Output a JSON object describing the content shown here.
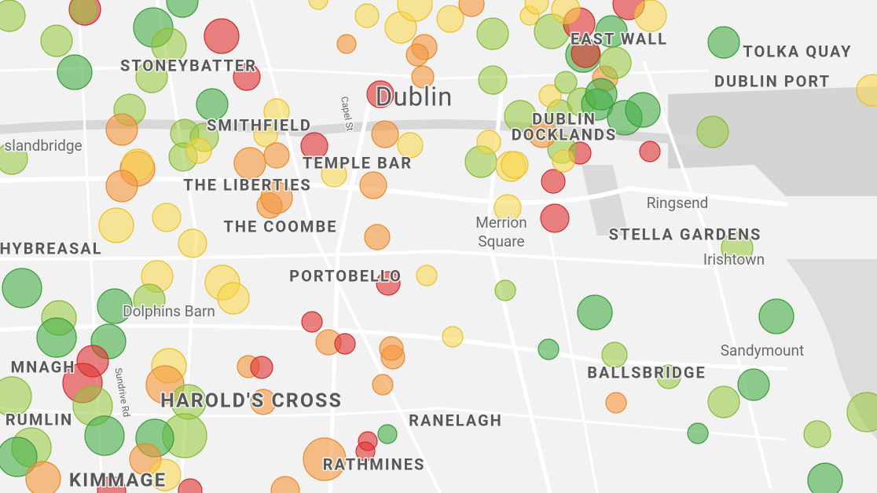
{
  "labels": [
    "STONEYBATTER",
    "Dublin",
    "EAST WALL",
    "TOLKA QUAY",
    "DUBLIN PORT",
    "SMITHFIELD",
    "Capel St",
    "DUBLIN",
    "DOCKLANDS",
    "slandbridge",
    "TEMPLE BAR",
    "THE LIBERTIES",
    "Ringsend",
    "Merrion",
    "Square",
    "THE COOMBE",
    "STELLA GARDENS",
    "HYBREASAL",
    "Irishtown",
    "PORTOBELLO",
    "Dolphins Barn",
    "Sandymount",
    "MNAGH",
    "BALLSBRIDGE",
    "Sundrive Rd",
    "HAROLD'S CROSS",
    "RUMLIN",
    "RANELAGH",
    "RATHMINES",
    "KIMMAGE"
  ]
}
